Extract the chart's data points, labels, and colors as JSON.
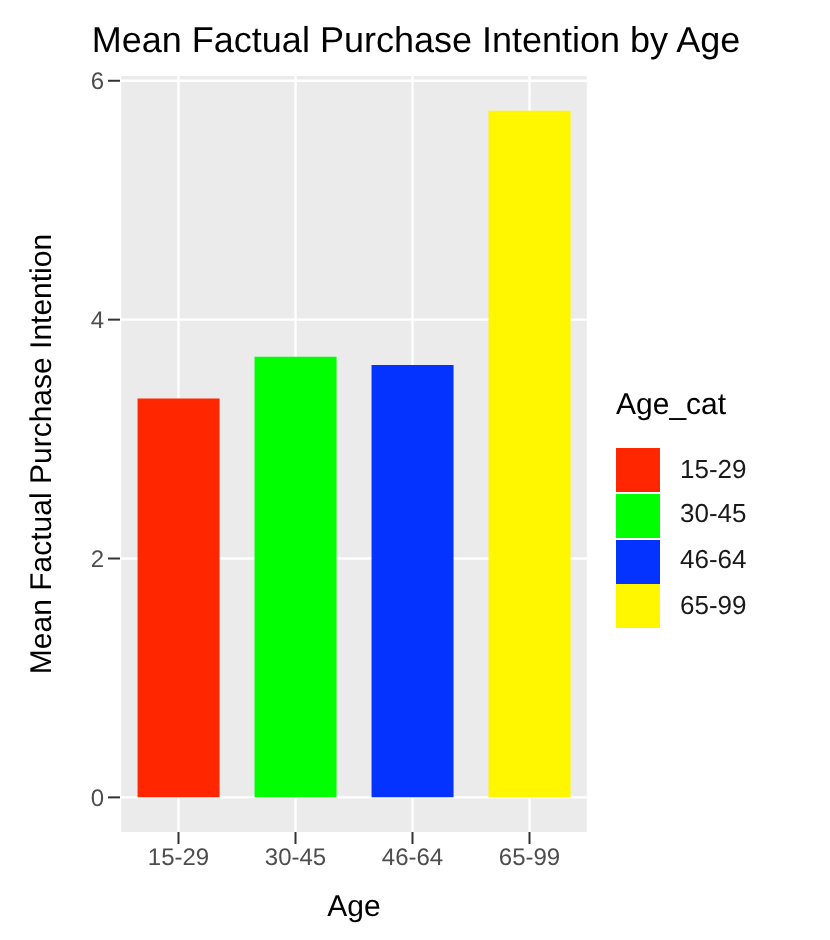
{
  "chart_data": {
    "type": "bar",
    "title": "Mean Factual Purchase Intention by Age",
    "xlabel": "Age",
    "ylabel": "Mean Factual Purchase Intention",
    "legend_title": "Age_cat",
    "categories": [
      "15-29",
      "30-45",
      "46-64",
      "65-99"
    ],
    "stacked": true,
    "series": [
      {
        "name": "15-29",
        "color": "#ff2600",
        "values": [
          3.34,
          null,
          null,
          null
        ]
      },
      {
        "name": "30-45",
        "color": "#00ff00",
        "values": [
          null,
          3.69,
          null,
          null
        ]
      },
      {
        "name": "46-64",
        "color": "#0433ff",
        "values": [
          null,
          null,
          3.62,
          null
        ]
      },
      {
        "name": "65-99",
        "color": "#fff700",
        "values": [
          null,
          null,
          null,
          5.75
        ]
      }
    ],
    "ylim": [
      -0.29,
      6.04
    ],
    "yticks": [
      0,
      2,
      4,
      6
    ],
    "grid": true,
    "legend": "right"
  }
}
